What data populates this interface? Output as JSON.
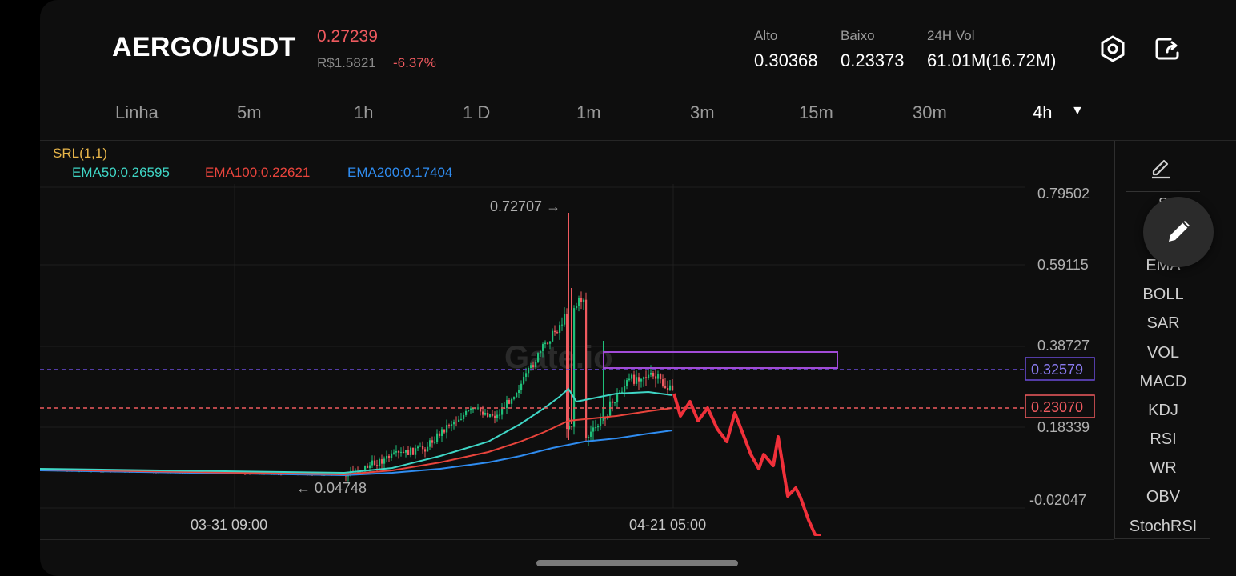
{
  "header": {
    "pair": "AERGO/USDT",
    "price": "0.27239",
    "fiat_price": "R$1.5821",
    "change": "-6.37%",
    "stats": [
      {
        "label": "Alto",
        "value": "0.30368"
      },
      {
        "label": "Baixo",
        "value": "0.23373"
      },
      {
        "label": "24H Vol",
        "value": "61.01M(16.72M)"
      }
    ],
    "icons": [
      "settings-hex-icon",
      "share-icon"
    ]
  },
  "tabs": [
    {
      "label": "Linha",
      "active": false
    },
    {
      "label": "5m",
      "active": false
    },
    {
      "label": "1h",
      "active": false
    },
    {
      "label": "1 D",
      "active": false
    },
    {
      "label": "1m",
      "active": false
    },
    {
      "label": "3m",
      "active": false
    },
    {
      "label": "15m",
      "active": false
    },
    {
      "label": "30m",
      "active": false
    },
    {
      "label": "4h",
      "active": true
    }
  ],
  "chart": {
    "srl": "SRL(1,1)",
    "ema50": "EMA50:0.26595",
    "ema100": "EMA100:0.22621",
    "ema200": "EMA200:0.17404",
    "y_ticks": [
      "0.79502",
      "0.59115",
      "0.38727",
      "0.18339",
      "-0.02047"
    ],
    "x_ticks": [
      "03-31 09:00",
      "04-21 05:00"
    ],
    "high_marker": "0.72707 →",
    "low_marker": "← 0.04748",
    "line_labels": {
      "purple": "0.32579",
      "red": "0.23070"
    },
    "watermark": "Gate.io",
    "colors": {
      "ema50": "#3fd6c6",
      "ema100": "#e8443c",
      "ema200": "#2f8cf0",
      "up": "#1fc07a",
      "down": "#ef5a5f",
      "purple": "#8a4bd8",
      "srl": "#e8b64a"
    }
  },
  "sidebar": {
    "partial_label": "S",
    "items": [
      "EMA",
      "BOLL",
      "SAR",
      "VOL",
      "MACD",
      "KDJ",
      "RSI",
      "WR",
      "OBV",
      "StochRSI"
    ]
  },
  "chart_data": {
    "type": "candlestick",
    "ylim": [
      -0.02047,
      0.79502
    ],
    "series": [
      {
        "name": "EMA50",
        "last": 0.26595
      },
      {
        "name": "EMA100",
        "last": 0.22621
      },
      {
        "name": "EMA200",
        "last": 0.17404
      }
    ],
    "high": 0.72707,
    "low": 0.04748,
    "horizontal_lines": [
      0.32579,
      0.2307
    ]
  }
}
